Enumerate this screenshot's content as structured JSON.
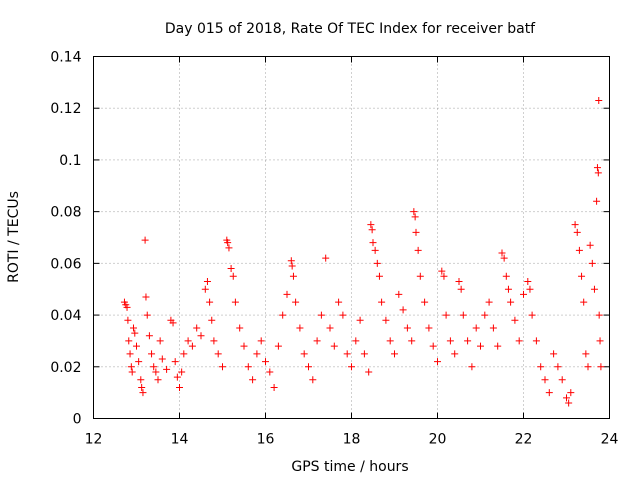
{
  "chart_data": {
    "type": "scatter",
    "title": "Day 015 of 2018, Rate Of TEC Index for receiver batf",
    "xlabel": "GPS time / hours",
    "ylabel": "ROTI / TECUs",
    "xlim": [
      12,
      24
    ],
    "ylim": [
      0,
      0.14
    ],
    "xticks": [
      "12",
      "14",
      "16",
      "18",
      "20",
      "22",
      "24"
    ],
    "yticks": [
      "0",
      "0.02",
      "0.04",
      "0.06",
      "0.08",
      "0.1",
      "0.12",
      "0.14"
    ],
    "grid": true,
    "marker": "+",
    "series": [
      {
        "name": "ROTI",
        "color": "#ff0000",
        "points": [
          [
            12.72,
            0.045
          ],
          [
            12.75,
            0.044
          ],
          [
            12.78,
            0.043
          ],
          [
            12.8,
            0.038
          ],
          [
            12.82,
            0.03
          ],
          [
            12.85,
            0.025
          ],
          [
            12.88,
            0.02
          ],
          [
            12.9,
            0.018
          ],
          [
            12.93,
            0.035
          ],
          [
            12.96,
            0.033
          ],
          [
            13.0,
            0.028
          ],
          [
            13.05,
            0.022
          ],
          [
            13.1,
            0.015
          ],
          [
            13.12,
            0.012
          ],
          [
            13.15,
            0.01
          ],
          [
            13.2,
            0.069
          ],
          [
            13.22,
            0.047
          ],
          [
            13.25,
            0.04
          ],
          [
            13.3,
            0.032
          ],
          [
            13.35,
            0.025
          ],
          [
            13.4,
            0.02
          ],
          [
            13.45,
            0.018
          ],
          [
            13.5,
            0.015
          ],
          [
            13.55,
            0.03
          ],
          [
            13.6,
            0.023
          ],
          [
            13.7,
            0.019
          ],
          [
            13.8,
            0.038
          ],
          [
            13.85,
            0.037
          ],
          [
            13.9,
            0.022
          ],
          [
            13.95,
            0.016
          ],
          [
            14.0,
            0.012
          ],
          [
            14.05,
            0.018
          ],
          [
            14.1,
            0.025
          ],
          [
            14.2,
            0.03
          ],
          [
            14.3,
            0.028
          ],
          [
            14.4,
            0.035
          ],
          [
            14.5,
            0.032
          ],
          [
            14.6,
            0.05
          ],
          [
            14.65,
            0.053
          ],
          [
            14.7,
            0.045
          ],
          [
            14.75,
            0.038
          ],
          [
            14.8,
            0.03
          ],
          [
            14.9,
            0.025
          ],
          [
            15.0,
            0.02
          ],
          [
            15.1,
            0.069
          ],
          [
            15.12,
            0.068
          ],
          [
            15.15,
            0.066
          ],
          [
            15.2,
            0.058
          ],
          [
            15.25,
            0.055
          ],
          [
            15.3,
            0.045
          ],
          [
            15.4,
            0.035
          ],
          [
            15.5,
            0.028
          ],
          [
            15.6,
            0.02
          ],
          [
            15.7,
            0.015
          ],
          [
            15.8,
            0.025
          ],
          [
            15.9,
            0.03
          ],
          [
            16.0,
            0.022
          ],
          [
            16.1,
            0.018
          ],
          [
            16.2,
            0.012
          ],
          [
            16.3,
            0.028
          ],
          [
            16.4,
            0.04
          ],
          [
            16.5,
            0.048
          ],
          [
            16.6,
            0.061
          ],
          [
            16.62,
            0.059
          ],
          [
            16.65,
            0.055
          ],
          [
            16.7,
            0.045
          ],
          [
            16.8,
            0.035
          ],
          [
            16.9,
            0.025
          ],
          [
            17.0,
            0.02
          ],
          [
            17.1,
            0.015
          ],
          [
            17.2,
            0.03
          ],
          [
            17.3,
            0.04
          ],
          [
            17.4,
            0.062
          ],
          [
            17.5,
            0.035
          ],
          [
            17.6,
            0.028
          ],
          [
            17.7,
            0.045
          ],
          [
            17.8,
            0.04
          ],
          [
            17.9,
            0.025
          ],
          [
            18.0,
            0.02
          ],
          [
            18.1,
            0.03
          ],
          [
            18.2,
            0.038
          ],
          [
            18.3,
            0.025
          ],
          [
            18.4,
            0.018
          ],
          [
            18.45,
            0.075
          ],
          [
            18.48,
            0.073
          ],
          [
            18.5,
            0.068
          ],
          [
            18.55,
            0.065
          ],
          [
            18.6,
            0.06
          ],
          [
            18.65,
            0.055
          ],
          [
            18.7,
            0.045
          ],
          [
            18.8,
            0.038
          ],
          [
            18.9,
            0.03
          ],
          [
            19.0,
            0.025
          ],
          [
            19.1,
            0.048
          ],
          [
            19.2,
            0.042
          ],
          [
            19.3,
            0.035
          ],
          [
            19.4,
            0.03
          ],
          [
            19.45,
            0.08
          ],
          [
            19.48,
            0.078
          ],
          [
            19.5,
            0.072
          ],
          [
            19.55,
            0.065
          ],
          [
            19.6,
            0.055
          ],
          [
            19.7,
            0.045
          ],
          [
            19.8,
            0.035
          ],
          [
            19.9,
            0.028
          ],
          [
            20.0,
            0.022
          ],
          [
            20.1,
            0.057
          ],
          [
            20.15,
            0.055
          ],
          [
            20.2,
            0.04
          ],
          [
            20.3,
            0.03
          ],
          [
            20.4,
            0.025
          ],
          [
            20.5,
            0.053
          ],
          [
            20.55,
            0.05
          ],
          [
            20.6,
            0.04
          ],
          [
            20.7,
            0.03
          ],
          [
            20.8,
            0.02
          ],
          [
            20.9,
            0.035
          ],
          [
            21.0,
            0.028
          ],
          [
            21.1,
            0.04
          ],
          [
            21.2,
            0.045
          ],
          [
            21.3,
            0.035
          ],
          [
            21.4,
            0.028
          ],
          [
            21.5,
            0.064
          ],
          [
            21.55,
            0.062
          ],
          [
            21.6,
            0.055
          ],
          [
            21.65,
            0.05
          ],
          [
            21.7,
            0.045
          ],
          [
            21.8,
            0.038
          ],
          [
            21.9,
            0.03
          ],
          [
            22.0,
            0.048
          ],
          [
            22.1,
            0.053
          ],
          [
            22.15,
            0.05
          ],
          [
            22.2,
            0.04
          ],
          [
            22.3,
            0.03
          ],
          [
            22.4,
            0.02
          ],
          [
            22.5,
            0.015
          ],
          [
            22.6,
            0.01
          ],
          [
            22.7,
            0.025
          ],
          [
            22.8,
            0.02
          ],
          [
            22.9,
            0.015
          ],
          [
            23.0,
            0.008
          ],
          [
            23.05,
            0.006
          ],
          [
            23.1,
            0.01
          ],
          [
            23.2,
            0.075
          ],
          [
            23.25,
            0.072
          ],
          [
            23.3,
            0.065
          ],
          [
            23.35,
            0.055
          ],
          [
            23.4,
            0.045
          ],
          [
            23.45,
            0.025
          ],
          [
            23.5,
            0.02
          ],
          [
            23.55,
            0.067
          ],
          [
            23.6,
            0.06
          ],
          [
            23.65,
            0.05
          ],
          [
            23.7,
            0.084
          ],
          [
            23.72,
            0.097
          ],
          [
            23.74,
            0.095
          ],
          [
            23.75,
            0.123
          ],
          [
            23.76,
            0.04
          ],
          [
            23.78,
            0.03
          ],
          [
            23.8,
            0.02
          ]
        ]
      }
    ]
  }
}
